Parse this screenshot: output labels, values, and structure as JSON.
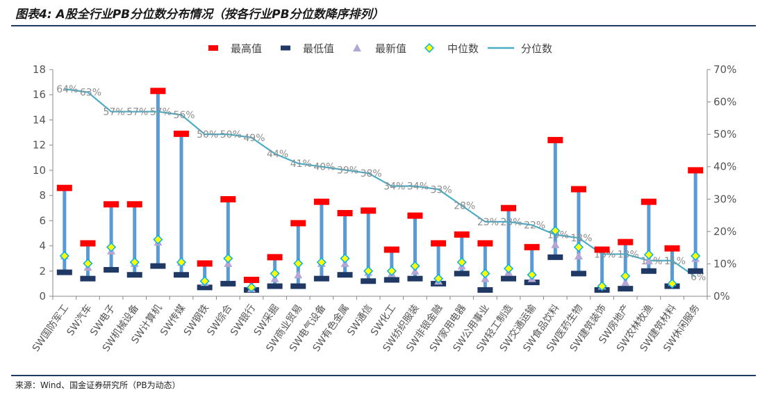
{
  "header": {
    "title": "图表4: A股全行业PB分位数分布情况（按各行业PB分位数降序排列）"
  },
  "footer": {
    "source": "来源：Wind、国金证券研究所（PB为动态）"
  },
  "chart_data": {
    "type": "stock-range",
    "categories": [
      "SW国防军工",
      "SW汽车",
      "SW电子",
      "SW机械设备",
      "SW计算机",
      "SW传媒",
      "SW钢铁",
      "SW综合",
      "SW银行",
      "SW采掘",
      "SW商业贸易",
      "SW电气设备",
      "SW有色金属",
      "SW通信",
      "SW化工",
      "SW纺织服装",
      "SW非银金融",
      "SW家用电器",
      "SW公用事业",
      "SW轻工制造",
      "SW交通运输",
      "SW食品饮料",
      "SW医药生物",
      "SW建筑装饰",
      "SW房地产",
      "SW农林牧渔",
      "SW建筑材料",
      "SW休闲服务"
    ],
    "series": [
      {
        "name": "最高值",
        "axis": "left",
        "color": "#ff0000",
        "values": [
          8.6,
          4.2,
          7.3,
          7.3,
          16.3,
          12.9,
          2.6,
          7.7,
          1.3,
          3.1,
          5.8,
          7.5,
          6.6,
          6.8,
          3.7,
          6.4,
          4.2,
          4.9,
          4.2,
          7.0,
          3.9,
          12.4,
          8.5,
          3.7,
          4.3,
          7.5,
          3.8,
          10.0
        ]
      },
      {
        "name": "最低值",
        "axis": "left",
        "color": "#1f3864",
        "values": [
          1.9,
          1.4,
          2.1,
          1.7,
          2.4,
          1.7,
          0.7,
          1.0,
          0.5,
          0.8,
          0.8,
          1.4,
          1.7,
          1.2,
          1.3,
          1.4,
          1.0,
          1.8,
          0.5,
          1.4,
          1.1,
          3.1,
          1.8,
          0.5,
          0.6,
          2.0,
          0.8,
          2.0
        ]
      },
      {
        "name": "最新值",
        "axis": "left",
        "color": "#b4a7d6",
        "values": [
          3.2,
          2.3,
          3.6,
          2.6,
          4.3,
          2.7,
          1.1,
          2.6,
          0.6,
          1.4,
          1.7,
          2.6,
          2.6,
          1.9,
          1.8,
          2.0,
          1.2,
          2.4,
          1.4,
          1.9,
          1.4,
          4.1,
          3.2,
          0.8,
          1.1,
          2.8,
          1.1,
          3.0
        ]
      },
      {
        "name": "中位数",
        "axis": "left",
        "color": "#00b0f0",
        "fill": "#ffff00",
        "values": [
          3.2,
          2.6,
          3.9,
          2.7,
          4.5,
          2.7,
          1.2,
          3.0,
          0.7,
          1.8,
          2.6,
          2.7,
          3.0,
          2.0,
          2.0,
          2.4,
          1.4,
          2.7,
          1.8,
          2.2,
          1.7,
          5.2,
          3.9,
          0.8,
          1.6,
          3.3,
          1.0,
          3.2
        ]
      },
      {
        "name": "分位数",
        "axis": "right",
        "color": "#4bacc6",
        "values": [
          64,
          63,
          57,
          57,
          57,
          56,
          50,
          50,
          49,
          44,
          41,
          40,
          39,
          38,
          34,
          34,
          33,
          28,
          23,
          23,
          22,
          19,
          18,
          13,
          13,
          11,
          11,
          6
        ],
        "labels": [
          "64%",
          "63%",
          "57%",
          "57%",
          "57%",
          "56%",
          "50%",
          "50%",
          "49%",
          "44%",
          "41%",
          "40%",
          "39%",
          "38%",
          "34%",
          "34%",
          "33%",
          "28%",
          "23%",
          "23%",
          "22%",
          "19%",
          "18%",
          "13%",
          "13%",
          "11%",
          "11%",
          "6%"
        ]
      }
    ],
    "y_left": {
      "min": 0,
      "max": 18,
      "step": 2,
      "ticks": [
        "0",
        "2",
        "4",
        "6",
        "8",
        "10",
        "12",
        "14",
        "16",
        "18"
      ]
    },
    "y_right": {
      "min": 0,
      "max": 70,
      "step": 10,
      "ticks": [
        "0%",
        "10%",
        "20%",
        "30%",
        "40%",
        "50%",
        "60%",
        "70%"
      ]
    },
    "legend": {
      "placement": "top-center"
    },
    "grid": false
  }
}
